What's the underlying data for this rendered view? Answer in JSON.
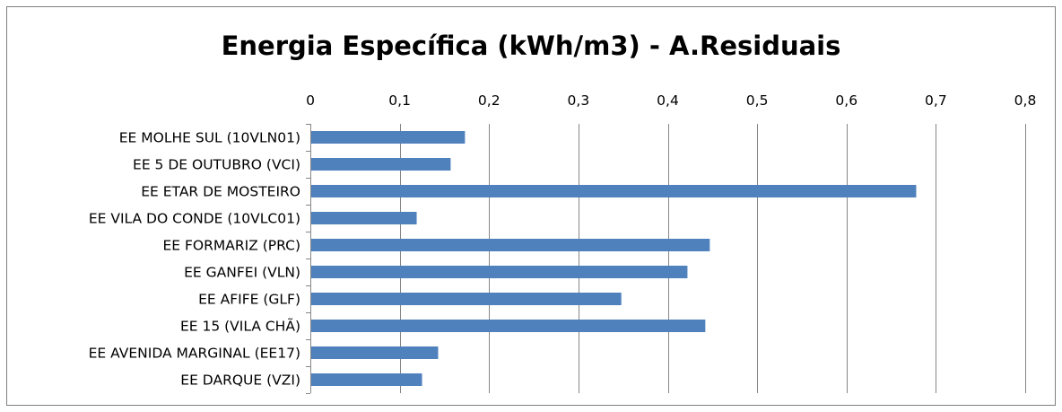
{
  "chart_data": {
    "type": "bar",
    "orientation": "horizontal",
    "title": "Energia Específica (kWh/m3) - A.Residuais",
    "xlabel": "",
    "ylabel": "",
    "xlim": [
      0,
      0.8
    ],
    "ticks": [
      0,
      0.1,
      0.2,
      0.3,
      0.4,
      0.5,
      0.6,
      0.7,
      0.8
    ],
    "tick_labels": [
      "0",
      "0,1",
      "0,2",
      "0,3",
      "0,4",
      "0,5",
      "0,6",
      "0,7",
      "0,8"
    ],
    "x_axis_position": "top",
    "grid": true,
    "legend": "none",
    "bar_color": "#4f81bd",
    "categories": [
      "EE MOLHE SUL (10VLN01)",
      "EE 5 DE OUTUBRO (VCI)",
      "EE ETAR DE MOSTEIRO",
      "EE VILA DO CONDE (10VLC01)",
      "EE FORMARIZ (PRC)",
      "EE GANFEI (VLN)",
      "EE AFIFE (GLF)",
      "EE 15 (VILA CHÃ)",
      "EE AVENIDA MARGINAL (EE17)",
      "EE DARQUE (VZI)"
    ],
    "values": [
      0.173,
      0.157,
      0.678,
      0.119,
      0.447,
      0.422,
      0.348,
      0.442,
      0.143,
      0.125
    ]
  }
}
